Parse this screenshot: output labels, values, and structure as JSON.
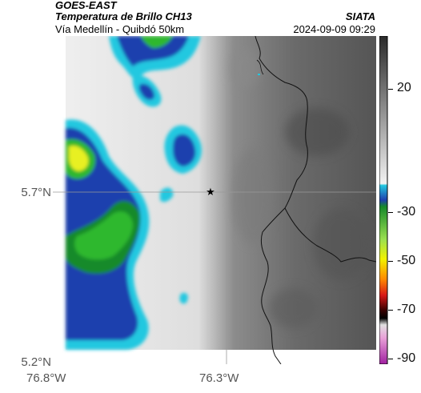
{
  "header": {
    "satellite": "GOES-EAST",
    "product": "Temperatura de Brillo CH13",
    "route": "Vía Medellín - Quibdó 50km",
    "organization": "SIATA",
    "timestamp": "2024-09-09 09:29"
  },
  "map": {
    "lat_labels": [
      "5.7°N",
      "5.2°N"
    ],
    "lon_labels": [
      "76.8°W",
      "76.3°W"
    ],
    "marker": "star-marker"
  },
  "colorbar": {
    "ticks": [
      "20",
      "-30",
      "-50",
      "-70",
      "-90"
    ],
    "colors": {
      "gray_warm": "#4a4a4a",
      "gray_cold": "#e8e8e8",
      "cyan": "#22c8e0",
      "blue": "#1f3fae",
      "green": "#2fb82f",
      "yellow": "#f2f200",
      "orange": "#ff8c00",
      "red": "#d81818",
      "black": "#000000",
      "magenta": "#c040b0"
    }
  }
}
